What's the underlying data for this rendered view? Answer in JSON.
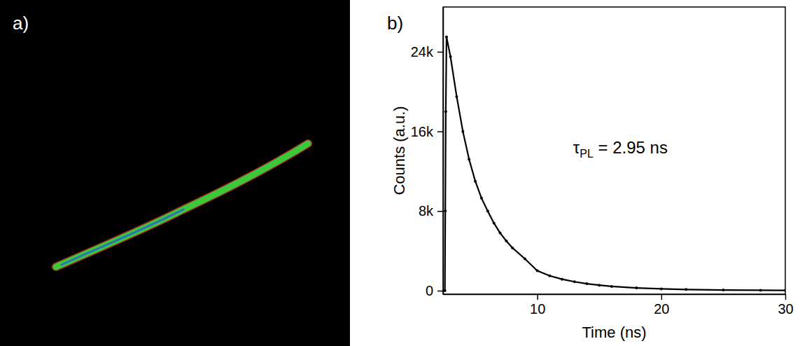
{
  "image_panel": {
    "label": "a)"
  },
  "chart_data": {
    "type": "line",
    "panel_label": "b)",
    "x_label": "Time (ns)",
    "y_label": "Counts (a.u.)",
    "annotation": {
      "symbol": "τ",
      "subscript": "PL",
      "text": " = 2.95 ns"
    },
    "color": "#000000",
    "marker": "dot",
    "line_style": "solid",
    "x": [
      2.55,
      2.58,
      2.62,
      2.68,
      3.0,
      3.5,
      4.0,
      4.5,
      5.0,
      5.5,
      6.0,
      6.5,
      7.0,
      7.5,
      8.0,
      9.0,
      10.0,
      11.0,
      12.0,
      13.0,
      14.0,
      15.0,
      16.0,
      18.0,
      20.0,
      22.0,
      25.0,
      28.0,
      30.0
    ],
    "values": [
      0,
      8000,
      18000,
      25500,
      23500,
      19500,
      16000,
      13200,
      11000,
      9300,
      8000,
      6800,
      5800,
      5000,
      4300,
      3200,
      2000,
      1500,
      1150,
      900,
      700,
      550,
      430,
      280,
      180,
      120,
      70,
      40,
      30
    ],
    "xlim": [
      2.4,
      30
    ],
    "ylim": [
      -350,
      28500
    ],
    "xticks": [
      10,
      20,
      30
    ],
    "yticks": [
      0,
      {
        "value": 8000,
        "label": "8k"
      },
      {
        "value": 16000,
        "label": "16k"
      },
      {
        "value": 24000,
        "label": "24k"
      }
    ]
  }
}
